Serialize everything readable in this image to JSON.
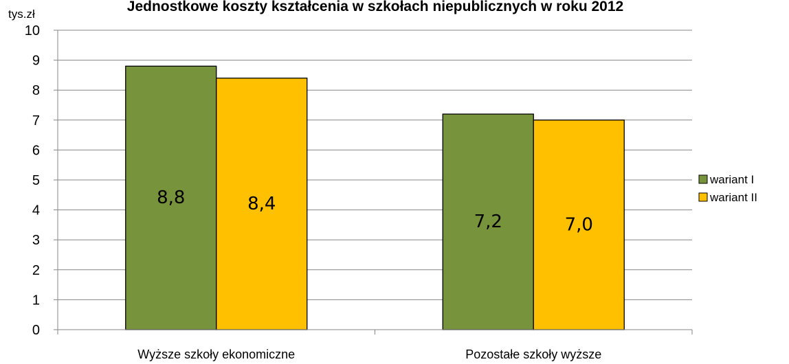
{
  "chart_data": {
    "type": "bar",
    "title": "Jednostkowe koszty kształcenia w szkołach niepublicznych  w roku 2012",
    "y_unit": "tys.zł",
    "categories": [
      "Wyższe szkoły ekonomiczne",
      "Pozostałe szkoły wyższe"
    ],
    "series": [
      {
        "name": "wariant I",
        "values": [
          8.8,
          7.2
        ],
        "labels": [
          "8,8",
          "7,2"
        ],
        "color": "#77933c"
      },
      {
        "name": "wariant II",
        "values": [
          8.4,
          7.0
        ],
        "labels": [
          "8,4",
          "7,0"
        ],
        "color": "#ffc000"
      }
    ],
    "ylim": [
      0,
      10
    ],
    "yticks": [
      "0",
      "1",
      "2",
      "3",
      "4",
      "5",
      "6",
      "7",
      "8",
      "9",
      "10"
    ],
    "grid": true,
    "legend_position": "right"
  }
}
